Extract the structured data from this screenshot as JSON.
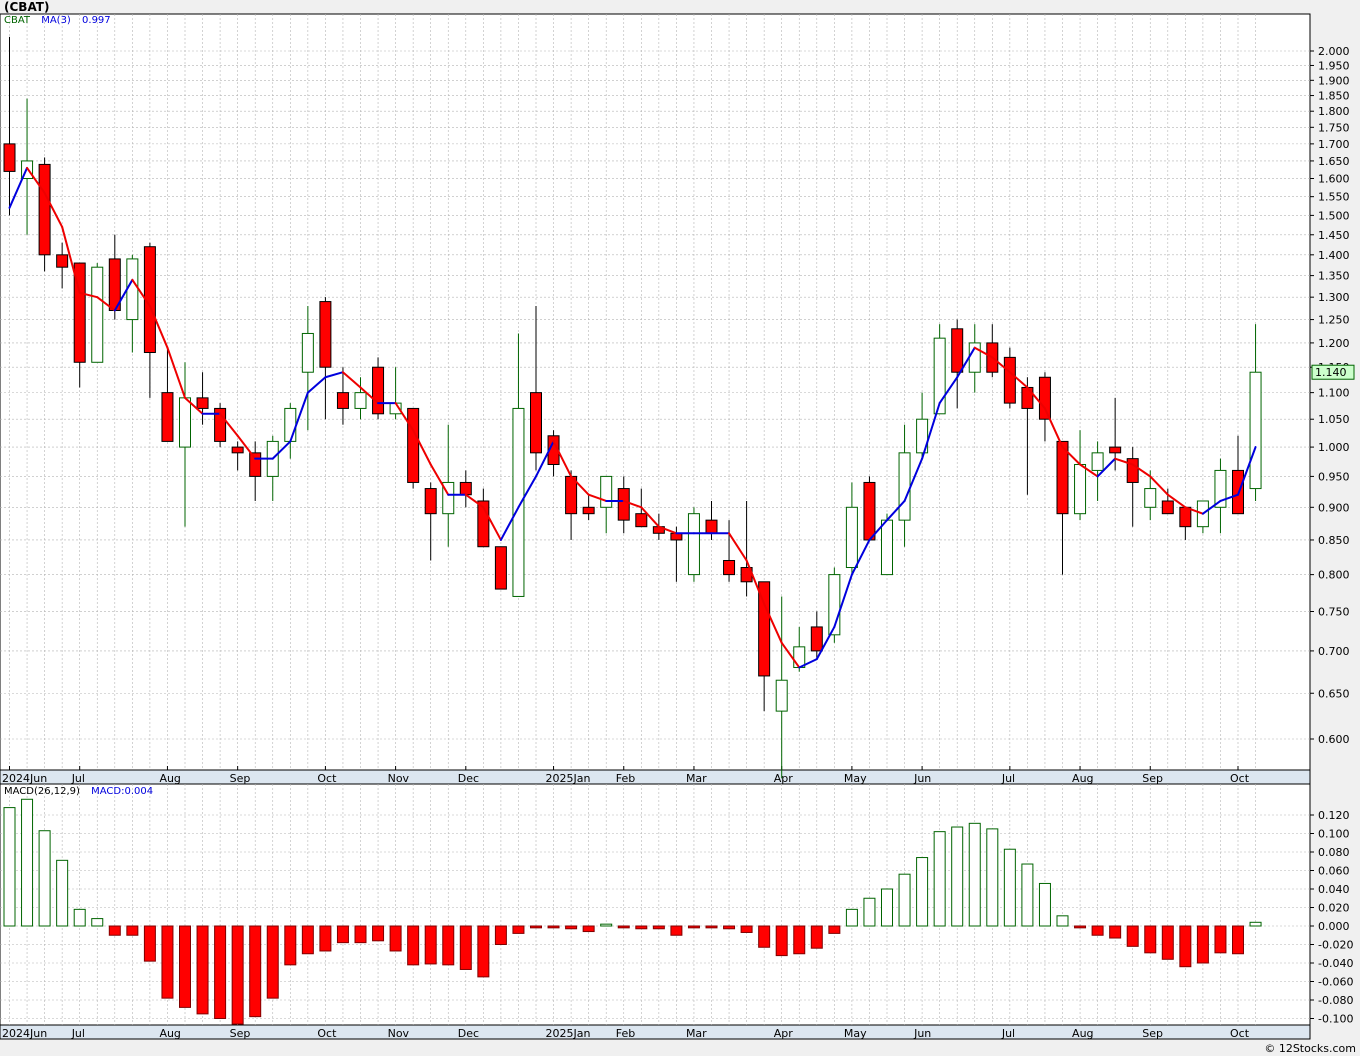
{
  "header": {
    "title": "(CBAT)",
    "legend_symbol": "CBAT",
    "legend_ma_label": "MA(3)",
    "legend_ma_value": "0.997",
    "last_price_label": "1.140",
    "macd_label": "MACD(26,12,9)",
    "macd_value_label": "MACD:0.004",
    "credit": "© 12Stocks.com"
  },
  "colors": {
    "up_candle": "#006400",
    "down_candle": "#ff0000",
    "ma_up": "#0000dd",
    "ma_down": "#ee0000",
    "grid": "#b4b4b4",
    "axis_band": "#dce6f0",
    "price_badge": "#ccffcc"
  },
  "chart_data": [
    {
      "type": "candlestick",
      "title": "(CBAT)",
      "ylim": [
        0.56,
        2.08
      ],
      "y_scale": "log",
      "yticks": [
        "2.000",
        "1.950",
        "1.900",
        "1.850",
        "1.800",
        "1.750",
        "1.700",
        "1.650",
        "1.600",
        "1.550",
        "1.500",
        "1.450",
        "1.400",
        "1.350",
        "1.300",
        "1.250",
        "1.200",
        "1.150",
        "1.100",
        "1.050",
        "1.000",
        "0.950",
        "0.900",
        "0.850",
        "0.800",
        "0.750",
        "0.700",
        "0.650",
        "0.600"
      ],
      "x_month_labels": [
        {
          "label": "2024Jun",
          "week": 0
        },
        {
          "label": "Jul",
          "week": 4
        },
        {
          "label": "Aug",
          "week": 9
        },
        {
          "label": "Sep",
          "week": 13
        },
        {
          "label": "Oct",
          "week": 18
        },
        {
          "label": "Nov",
          "week": 22
        },
        {
          "label": "Dec",
          "week": 26
        },
        {
          "label": "2025Jan",
          "week": 31
        },
        {
          "label": "Feb",
          "week": 35
        },
        {
          "label": "Mar",
          "week": 39
        },
        {
          "label": "Apr",
          "week": 44
        },
        {
          "label": "May",
          "week": 48
        },
        {
          "label": "Jun",
          "week": 52
        },
        {
          "label": "Jul",
          "week": 57
        },
        {
          "label": "Aug",
          "week": 61
        },
        {
          "label": "Sep",
          "week": 65
        },
        {
          "label": "Oct",
          "week": 70
        }
      ],
      "series": [
        {
          "name": "CBAT",
          "ohlc": [
            [
              1.7,
              2.05,
              1.5,
              1.62
            ],
            [
              1.6,
              1.84,
              1.45,
              1.65
            ],
            [
              1.64,
              1.66,
              1.36,
              1.4
            ],
            [
              1.4,
              1.43,
              1.32,
              1.37
            ],
            [
              1.38,
              1.38,
              1.11,
              1.16
            ],
            [
              1.16,
              1.38,
              1.16,
              1.37
            ],
            [
              1.39,
              1.45,
              1.25,
              1.27
            ],
            [
              1.25,
              1.4,
              1.18,
              1.39
            ],
            [
              1.42,
              1.43,
              1.09,
              1.18
            ],
            [
              1.1,
              1.19,
              1.01,
              1.01
            ],
            [
              1.0,
              1.16,
              0.87,
              1.09
            ],
            [
              1.09,
              1.14,
              1.04,
              1.07
            ],
            [
              1.07,
              1.08,
              1.0,
              1.01
            ],
            [
              1.0,
              1.01,
              0.96,
              0.99
            ],
            [
              0.99,
              1.01,
              0.91,
              0.95
            ],
            [
              0.95,
              1.02,
              0.91,
              1.01
            ],
            [
              1.01,
              1.08,
              0.98,
              1.07
            ],
            [
              1.14,
              1.28,
              1.03,
              1.22
            ],
            [
              1.29,
              1.3,
              1.05,
              1.15
            ],
            [
              1.1,
              1.15,
              1.04,
              1.07
            ],
            [
              1.07,
              1.13,
              1.05,
              1.1
            ],
            [
              1.15,
              1.17,
              1.05,
              1.06
            ],
            [
              1.06,
              1.15,
              1.05,
              1.08
            ],
            [
              1.07,
              1.07,
              0.93,
              0.94
            ],
            [
              0.93,
              0.94,
              0.82,
              0.89
            ],
            [
              0.89,
              1.04,
              0.84,
              0.94
            ],
            [
              0.94,
              0.96,
              0.9,
              0.92
            ],
            [
              0.91,
              0.93,
              0.84,
              0.84
            ],
            [
              0.84,
              0.84,
              0.78,
              0.78
            ],
            [
              0.77,
              1.22,
              0.77,
              1.07
            ],
            [
              1.1,
              1.28,
              0.96,
              0.99
            ],
            [
              1.02,
              1.03,
              0.95,
              0.97
            ],
            [
              0.95,
              0.96,
              0.85,
              0.89
            ],
            [
              0.9,
              0.92,
              0.88,
              0.89
            ],
            [
              0.9,
              0.95,
              0.86,
              0.95
            ],
            [
              0.93,
              0.95,
              0.86,
              0.88
            ],
            [
              0.89,
              0.93,
              0.88,
              0.87
            ],
            [
              0.87,
              0.89,
              0.85,
              0.86
            ],
            [
              0.86,
              0.87,
              0.79,
              0.85
            ],
            [
              0.8,
              0.9,
              0.79,
              0.89
            ],
            [
              0.88,
              0.91,
              0.85,
              0.86
            ],
            [
              0.82,
              0.88,
              0.79,
              0.8
            ],
            [
              0.81,
              0.91,
              0.77,
              0.79
            ],
            [
              0.79,
              0.79,
              0.63,
              0.67
            ],
            [
              0.63,
              0.77,
              0.56,
              0.665
            ],
            [
              0.68,
              0.73,
              0.675,
              0.705
            ],
            [
              0.73,
              0.75,
              0.69,
              0.7
            ],
            [
              0.72,
              0.81,
              0.71,
              0.8
            ],
            [
              0.81,
              0.94,
              0.8,
              0.9
            ],
            [
              0.94,
              0.95,
              0.85,
              0.85
            ],
            [
              0.8,
              0.89,
              0.8,
              0.88
            ],
            [
              0.88,
              1.04,
              0.84,
              0.99
            ],
            [
              0.99,
              1.1,
              0.98,
              1.05
            ],
            [
              1.06,
              1.24,
              1.06,
              1.21
            ],
            [
              1.23,
              1.25,
              1.07,
              1.14
            ],
            [
              1.14,
              1.24,
              1.1,
              1.2
            ],
            [
              1.2,
              1.24,
              1.13,
              1.14
            ],
            [
              1.17,
              1.19,
              1.07,
              1.08
            ],
            [
              1.11,
              1.13,
              0.92,
              1.07
            ],
            [
              1.13,
              1.14,
              1.01,
              1.05
            ],
            [
              1.01,
              1.01,
              0.8,
              0.89
            ],
            [
              0.89,
              1.03,
              0.88,
              0.97
            ],
            [
              0.96,
              1.01,
              0.91,
              0.99
            ],
            [
              1.0,
              1.09,
              0.96,
              0.99
            ],
            [
              0.98,
              1.0,
              0.87,
              0.94
            ],
            [
              0.9,
              0.96,
              0.88,
              0.93
            ],
            [
              0.91,
              0.93,
              0.89,
              0.89
            ],
            [
              0.9,
              0.9,
              0.85,
              0.87
            ],
            [
              0.87,
              0.91,
              0.86,
              0.91
            ],
            [
              0.9,
              0.98,
              0.86,
              0.96
            ],
            [
              0.96,
              1.02,
              0.89,
              0.89
            ],
            [
              0.93,
              1.24,
              0.91,
              1.14
            ]
          ]
        },
        {
          "name": "MA(3)",
          "values": [
            1.52,
            1.63,
            1.56,
            1.47,
            1.31,
            1.3,
            1.27,
            1.34,
            1.28,
            1.19,
            1.09,
            1.06,
            1.06,
            1.02,
            0.98,
            0.98,
            1.01,
            1.1,
            1.13,
            1.14,
            1.11,
            1.08,
            1.08,
            1.03,
            0.97,
            0.92,
            0.92,
            0.9,
            0.85,
            0.9,
            0.95,
            1.01,
            0.95,
            0.92,
            0.91,
            0.91,
            0.9,
            0.87,
            0.86,
            0.86,
            0.86,
            0.86,
            0.82,
            0.76,
            0.71,
            0.68,
            0.69,
            0.73,
            0.8,
            0.85,
            0.88,
            0.91,
            0.98,
            1.08,
            1.13,
            1.19,
            1.17,
            1.14,
            1.11,
            1.07,
            1.0,
            0.97,
            0.95,
            0.98,
            0.97,
            0.95,
            0.92,
            0.9,
            0.89,
            0.91,
            0.92,
            1.0
          ]
        }
      ]
    },
    {
      "type": "bar",
      "title": "MACD(26,12,9)",
      "ylim": [
        -0.108,
        0.137
      ],
      "yticks": [
        "0.120",
        "0.100",
        "0.080",
        "0.060",
        "0.040",
        "0.020",
        "0.000",
        "-0.020",
        "-0.040",
        "-0.060",
        "-0.080",
        "-0.100"
      ],
      "series": [
        {
          "name": "MACD",
          "values": [
            0.128,
            0.137,
            0.103,
            0.071,
            0.018,
            0.008,
            -0.01,
            -0.01,
            -0.038,
            -0.078,
            -0.088,
            -0.095,
            -0.1,
            -0.106,
            -0.098,
            -0.078,
            -0.042,
            -0.03,
            -0.027,
            -0.018,
            -0.018,
            -0.016,
            -0.027,
            -0.042,
            -0.041,
            -0.042,
            -0.047,
            -0.055,
            -0.02,
            -0.008,
            -0.002,
            -0.002,
            -0.003,
            -0.006,
            0.002,
            -0.002,
            -0.003,
            -0.003,
            -0.01,
            -0.002,
            -0.002,
            -0.003,
            -0.007,
            -0.023,
            -0.032,
            -0.03,
            -0.024,
            -0.008,
            0.018,
            0.03,
            0.04,
            0.056,
            0.074,
            0.102,
            0.107,
            0.111,
            0.105,
            0.083,
            0.067,
            0.046,
            0.011,
            -0.002,
            -0.01,
            -0.013,
            -0.022,
            -0.029,
            -0.036,
            -0.044,
            -0.04,
            -0.029,
            -0.03,
            0.004
          ]
        }
      ]
    }
  ]
}
